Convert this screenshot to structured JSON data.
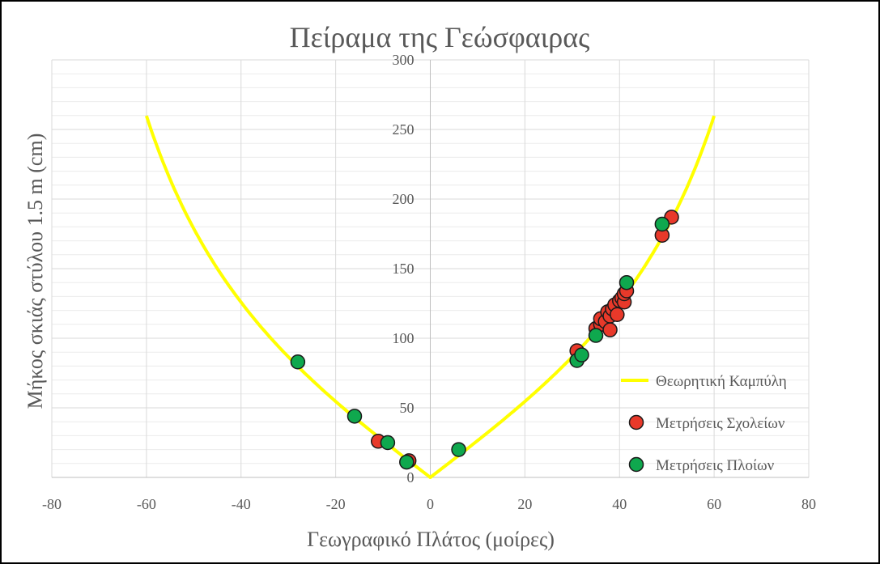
{
  "chart_data": {
    "type": "scatter",
    "title": "Πείραμα της Γεώσφαιρας",
    "xlabel": "Γεωγραφικό Πλάτος (μοίρες)",
    "ylabel": "Μήκος σκιάς στύλου 1.5 m (cm)",
    "xlim": [
      -80,
      80
    ],
    "ylim": [
      0,
      300
    ],
    "x_ticks": [
      "-80",
      "-60",
      "-40",
      "-20",
      "0",
      "20",
      "40",
      "60",
      "80"
    ],
    "y_ticks": [
      "0",
      "50",
      "100",
      "150",
      "200",
      "250",
      "300"
    ],
    "grid": true,
    "legend_position": "right",
    "series": [
      {
        "name": "Θεωρητική Καμπύλη",
        "kind": "line",
        "color": "#ffff00",
        "formula": "150*tan(|x|)",
        "x_range": [
          -60,
          60
        ]
      },
      {
        "name": "Μετρήσεις Σχολείων",
        "kind": "scatter",
        "color": "#e8392a",
        "points": [
          [
            -11,
            26
          ],
          [
            -4.5,
            12
          ],
          [
            31,
            91
          ],
          [
            35,
            107
          ],
          [
            36,
            110
          ],
          [
            36,
            114
          ],
          [
            37,
            112
          ],
          [
            37.5,
            119
          ],
          [
            38,
            106
          ],
          [
            38,
            116
          ],
          [
            38.5,
            121
          ],
          [
            39,
            124
          ],
          [
            39.5,
            117
          ],
          [
            40,
            127
          ],
          [
            40.5,
            129
          ],
          [
            41,
            126
          ],
          [
            41,
            132
          ],
          [
            41.5,
            134
          ],
          [
            49,
            174
          ],
          [
            51,
            187
          ]
        ]
      },
      {
        "name": "Μετρήσεις Πλοίων",
        "kind": "scatter",
        "color": "#0fa84e",
        "points": [
          [
            -28,
            83
          ],
          [
            -16,
            44
          ],
          [
            -9,
            25
          ],
          [
            -5,
            11
          ],
          [
            6,
            20
          ],
          [
            31,
            84
          ],
          [
            32,
            88
          ],
          [
            35,
            102
          ],
          [
            41.5,
            140
          ],
          [
            49,
            182
          ]
        ]
      }
    ]
  }
}
